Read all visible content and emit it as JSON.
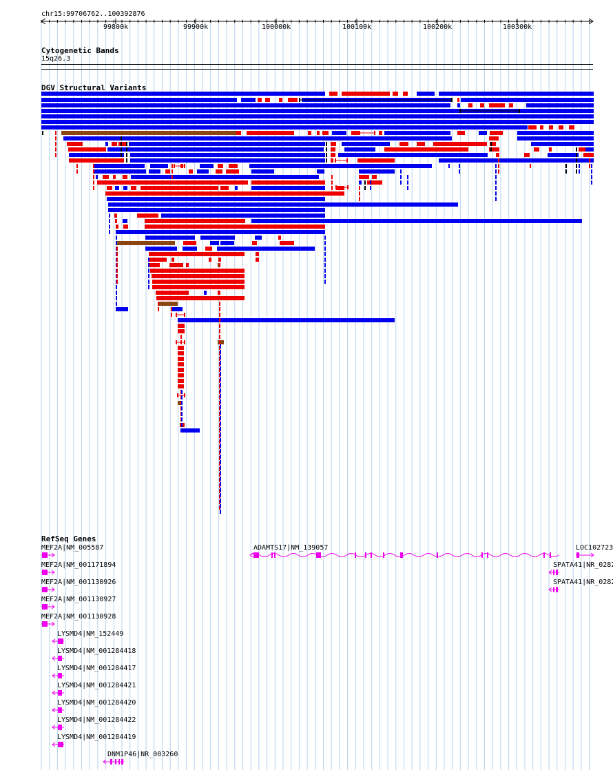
{
  "ruler": {
    "location": "chr15:99706762..100392876",
    "ticks": [
      "99800k",
      "99900k",
      "100000k",
      "100100k",
      "100200k",
      "100300k"
    ]
  },
  "cytoband": {
    "title": "Cytogenetic Bands",
    "band": "15q26.3"
  },
  "dgv": {
    "title": "DGV Structural Variants",
    "colors": {
      "gain": "#ee0000",
      "loss": "#0000ee",
      "inversion": "#8b4513",
      "complex": "#000000"
    }
  },
  "refseq": {
    "title": "RefSeq Genes",
    "gene_color": "#ee00ee",
    "genes": [
      {
        "label": "MEF2A|NM_005587",
        "strand": "+"
      },
      {
        "label": "MEF2A|NM_001171894",
        "strand": "+"
      },
      {
        "label": "MEF2A|NM_001130926",
        "strand": "+"
      },
      {
        "label": "MEF2A|NM_001130927",
        "strand": "+"
      },
      {
        "label": "MEF2A|NM_001130928",
        "strand": "+"
      },
      {
        "label": "LYSMD4|NM_152449",
        "strand": "-"
      },
      {
        "label": "LYSMD4|NM_001284418",
        "strand": "-"
      },
      {
        "label": "LYSMD4|NM_001284417",
        "strand": "-"
      },
      {
        "label": "LYSMD4|NM_001284421",
        "strand": "-"
      },
      {
        "label": "LYSMD4|NM_001284420",
        "strand": "-"
      },
      {
        "label": "LYSMD4|NM_001284422",
        "strand": "-"
      },
      {
        "label": "LYSMD4|NM_001284419",
        "strand": "-"
      },
      {
        "label": "DNM1P46|NR_003260",
        "strand": "-"
      },
      {
        "label": "ADAMTS17|NM_139057",
        "strand": "-"
      },
      {
        "label": "LOC102723",
        "strand": "+"
      },
      {
        "label": "SPATA41|NR_0282",
        "strand": "-"
      },
      {
        "label": "SPATA41|NR_0282",
        "strand": "-"
      }
    ]
  }
}
